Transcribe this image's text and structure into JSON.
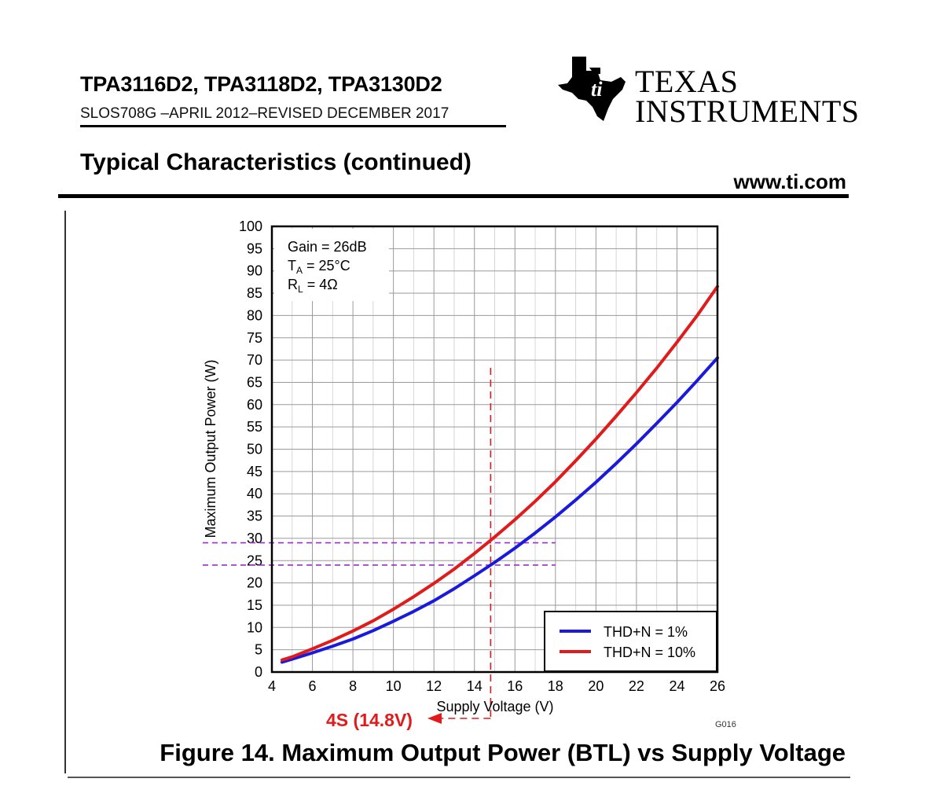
{
  "header": {
    "document_title": "TPA3116D2, TPA3118D2, TPA3130D2",
    "document_number": "SLOS708G –APRIL 2012–REVISED DECEMBER 2017",
    "section_title": "Typical Characteristics (continued)",
    "website": "www.ti.com",
    "logo_line1": "TEXAS",
    "logo_line2": "INSTRUMENTS"
  },
  "figure": {
    "caption": "Figure 14. Maximum Output Power (BTL) vs Supply Voltage",
    "id": "G016"
  },
  "chart_data": {
    "type": "line",
    "title": "",
    "xlabel": "Supply Voltage (V)",
    "ylabel": "Maximum Output Power (W)",
    "xlim": [
      4,
      26
    ],
    "ylim": [
      0,
      100
    ],
    "xticks": [
      4,
      6,
      8,
      10,
      12,
      14,
      16,
      18,
      20,
      22,
      24,
      26
    ],
    "yticks": [
      0,
      5,
      10,
      15,
      20,
      25,
      30,
      35,
      40,
      45,
      50,
      55,
      60,
      65,
      70,
      75,
      80,
      85,
      90,
      95,
      100
    ],
    "grid": true,
    "legend_position": "bottom-right",
    "conditions": {
      "gain": "Gain = 26dB",
      "ta_prefix": "T",
      "ta_sub": "A",
      "ta_value": " = 25°C",
      "rl_prefix": "R",
      "rl_sub": "L",
      "rl_value": " = 4Ω"
    },
    "series": [
      {
        "name": "THD+N = 1%",
        "color": "#1a1adc",
        "x": [
          4.5,
          5,
          6,
          7,
          8,
          9,
          10,
          11,
          12,
          13,
          14,
          15,
          16,
          17,
          18,
          19,
          20,
          21,
          22,
          23,
          24,
          25,
          26
        ],
        "y": [
          2.2,
          2.9,
          4.3,
          5.8,
          7.4,
          9.3,
          11.4,
          13.6,
          16.0,
          18.7,
          21.6,
          24.6,
          27.8,
          31.2,
          34.8,
          38.6,
          42.6,
          46.8,
          51.2,
          55.8,
          60.5,
          65.4,
          70.5
        ]
      },
      {
        "name": "THD+N = 10%",
        "color": "#e01b1b",
        "x": [
          4.5,
          5,
          6,
          7,
          8,
          9,
          10,
          11,
          12,
          13,
          14,
          15,
          16,
          17,
          18,
          19,
          20,
          21,
          22,
          23,
          24,
          25,
          26
        ],
        "y": [
          2.7,
          3.4,
          5.2,
          7.1,
          9.2,
          11.5,
          14.1,
          16.9,
          19.9,
          23.1,
          26.6,
          30.3,
          34.2,
          38.3,
          42.7,
          47.4,
          52.3,
          57.4,
          62.7,
          68.2,
          74.0,
          80.0,
          86.5
        ]
      }
    ],
    "annotation": {
      "label": "4S (14.8V)",
      "x_value": 14.8,
      "y_values": [
        24,
        29
      ],
      "vertical_color": "#e01b1b",
      "horizontal_color": "#9b2fc9"
    }
  }
}
